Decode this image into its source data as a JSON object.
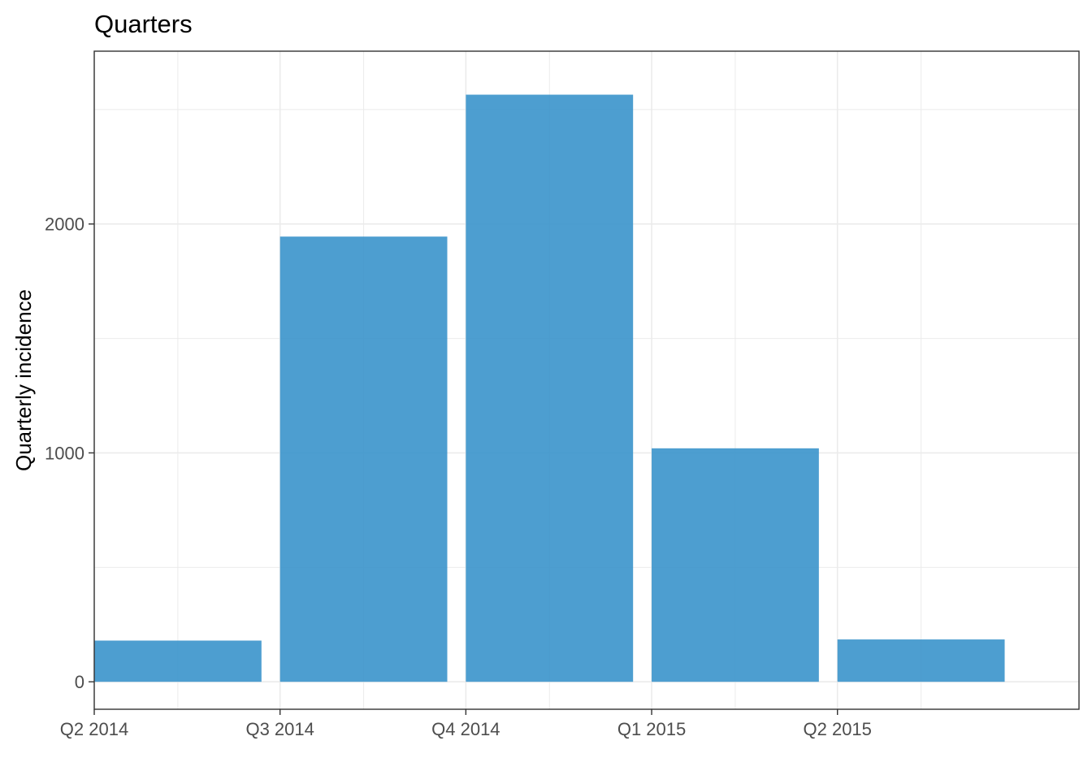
{
  "chart_data": {
    "type": "bar",
    "title": "Quarters",
    "xlabel": "",
    "ylabel": "Quarterly incidence",
    "categories": [
      "Q2 2014",
      "Q3 2014",
      "Q4 2014",
      "Q1 2015",
      "Q2 2015"
    ],
    "x_tick_labels": [
      "Q2 2014",
      "Q3 2014",
      "Q4 2014",
      "Q1 2015",
      "Q2 2015"
    ],
    "values": [
      180,
      1945,
      2565,
      1020,
      185
    ],
    "y_ticks": [
      0,
      1000,
      2000
    ],
    "y_tick_labels": [
      "0",
      "1000",
      "2000"
    ],
    "ylim": [
      -120,
      2755
    ],
    "grid": true,
    "legend": "none",
    "bar_color": "#3a93cb",
    "panel_border_color": "#333333",
    "grid_color": "#ebebeb"
  }
}
